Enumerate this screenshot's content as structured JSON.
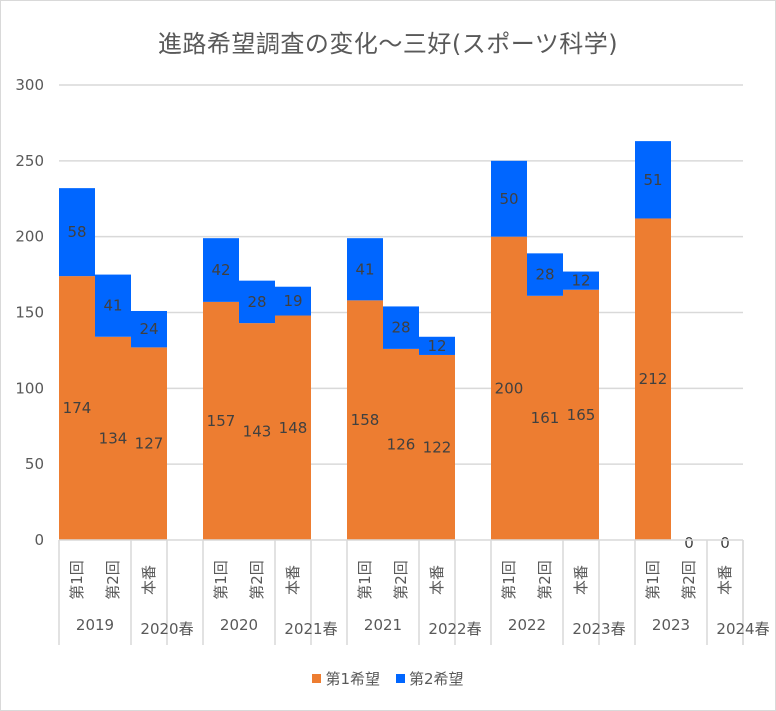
{
  "chart_data": {
    "type": "bar",
    "stacked": true,
    "title": "進路希望調査の変化～三好(スポーツ科学)",
    "xlabel": "",
    "ylabel": "",
    "ylim": [
      0,
      300
    ],
    "yticks": [
      0,
      50,
      100,
      150,
      200,
      250,
      300
    ],
    "grid": true,
    "legend_position": "bottom",
    "groups": [
      {
        "year": "2019",
        "spring": "2020春",
        "categories": [
          "第1回",
          "第2回",
          "本番"
        ]
      },
      {
        "year": "2020",
        "spring": "2021春",
        "categories": [
          "第1回",
          "第2回",
          "本番"
        ]
      },
      {
        "year": "2021",
        "spring": "2022春",
        "categories": [
          "第1回",
          "第2回",
          "本番"
        ]
      },
      {
        "year": "2022",
        "spring": "2023春",
        "categories": [
          "第1回",
          "第2回",
          "本番"
        ]
      },
      {
        "year": "2023",
        "spring": "2024春",
        "categories": [
          "第1回",
          "第2回",
          "本番"
        ]
      }
    ],
    "series": [
      {
        "name": "第1希望",
        "color": "#ED7D31",
        "values": [
          [
            174,
            134,
            127
          ],
          [
            157,
            143,
            148
          ],
          [
            158,
            126,
            122
          ],
          [
            200,
            161,
            165
          ],
          [
            212,
            0,
            0
          ]
        ]
      },
      {
        "name": "第2希望",
        "color": "#0066FF",
        "values": [
          [
            58,
            41,
            24
          ],
          [
            42,
            28,
            19
          ],
          [
            41,
            28,
            12
          ],
          [
            50,
            28,
            12
          ],
          [
            51,
            null,
            null
          ]
        ]
      }
    ],
    "zero_labels": [
      [
        4,
        1,
        "0"
      ],
      [
        4,
        2,
        "0"
      ]
    ]
  }
}
